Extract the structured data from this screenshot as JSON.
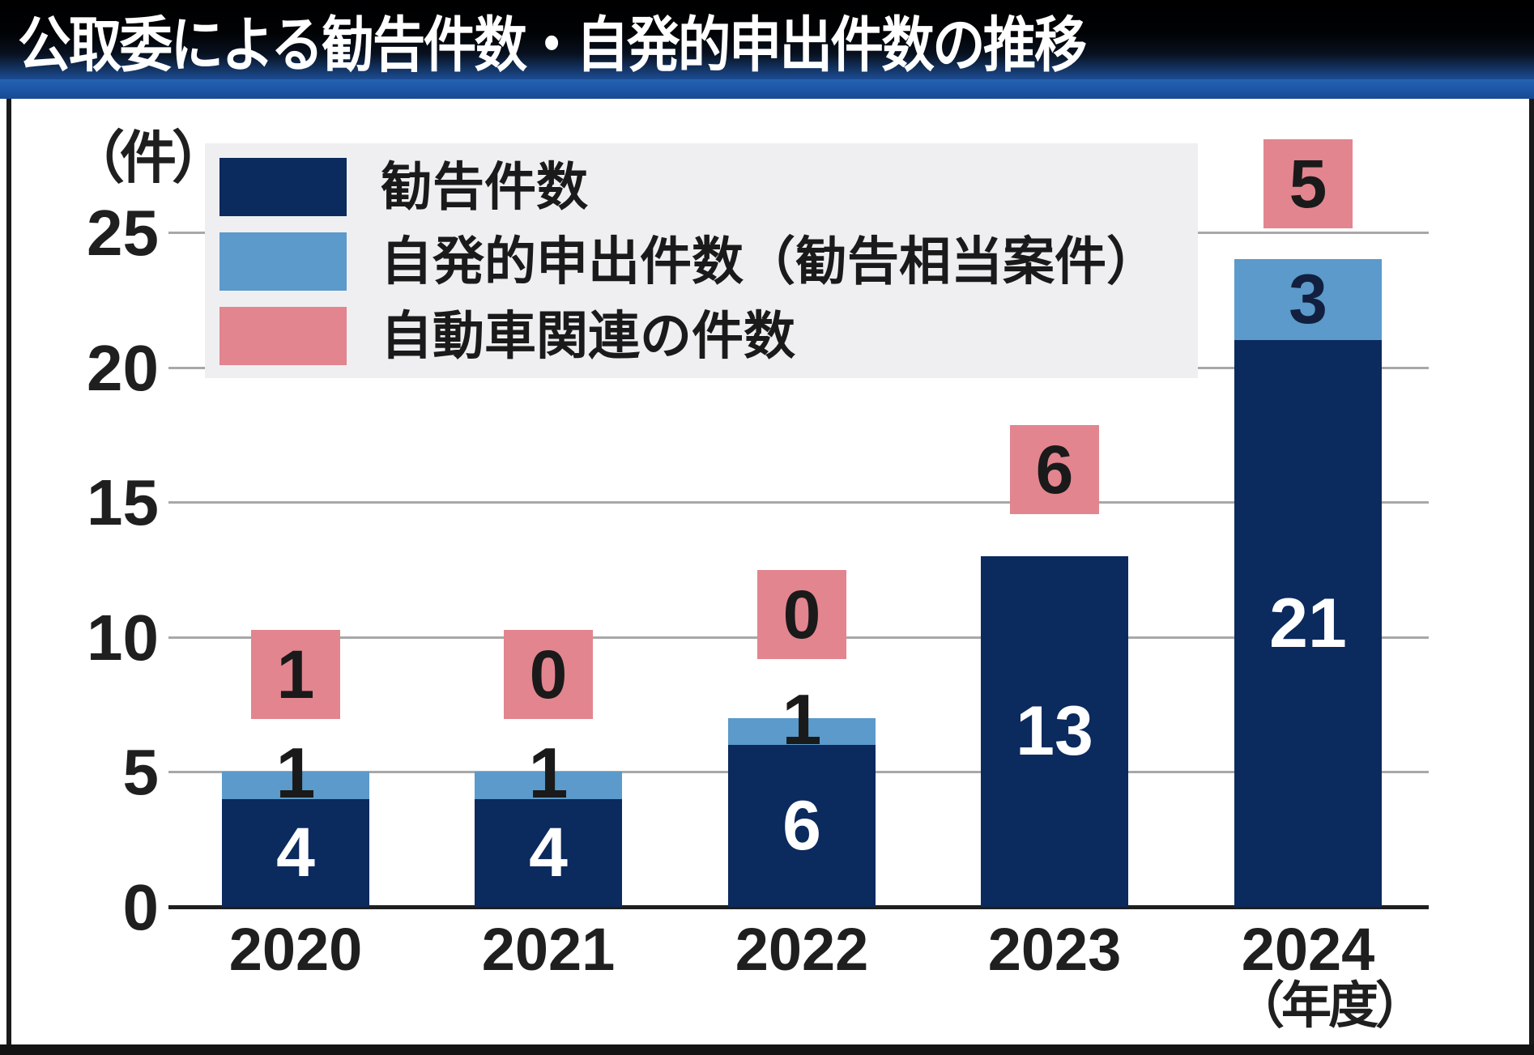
{
  "title": "公取委による勧告件数・自発的申出件数の推移",
  "chart_data": {
    "type": "bar",
    "stacked": true,
    "title": "公取委による勧告件数・自発的申出件数の推移",
    "unit_label": "（件）",
    "axis_suffix_label": "（年度）",
    "categories": [
      "2020",
      "2021",
      "2022",
      "2023",
      "2024"
    ],
    "series": [
      {
        "name": "勧告件数",
        "render": "bar",
        "color": "#0b2a5e",
        "label_color": "#ffffff",
        "values": [
          4,
          4,
          6,
          13,
          21
        ]
      },
      {
        "name": "自発的申出件数（勧告相当案件）",
        "render": "bar",
        "color": "#5b9aca",
        "label_color": "#121f3e",
        "values": [
          1,
          1,
          1,
          0,
          3
        ]
      },
      {
        "name": "自動車関連の件数",
        "render": "annotation-box",
        "color": "#e2858f",
        "label_color": "#1a1a1a",
        "values": [
          1,
          0,
          0,
          6,
          5
        ]
      }
    ],
    "ylim": [
      0,
      25
    ],
    "yticks": [
      0,
      5,
      10,
      15,
      20,
      25
    ],
    "grid": true,
    "legend_position": "top-left",
    "colors": {
      "grid": "#a8a8a8",
      "axis": "#1f1f1f",
      "legend_background": "#efeff1",
      "title_bar": "#000000",
      "title_strip": "#1d55a6"
    }
  }
}
